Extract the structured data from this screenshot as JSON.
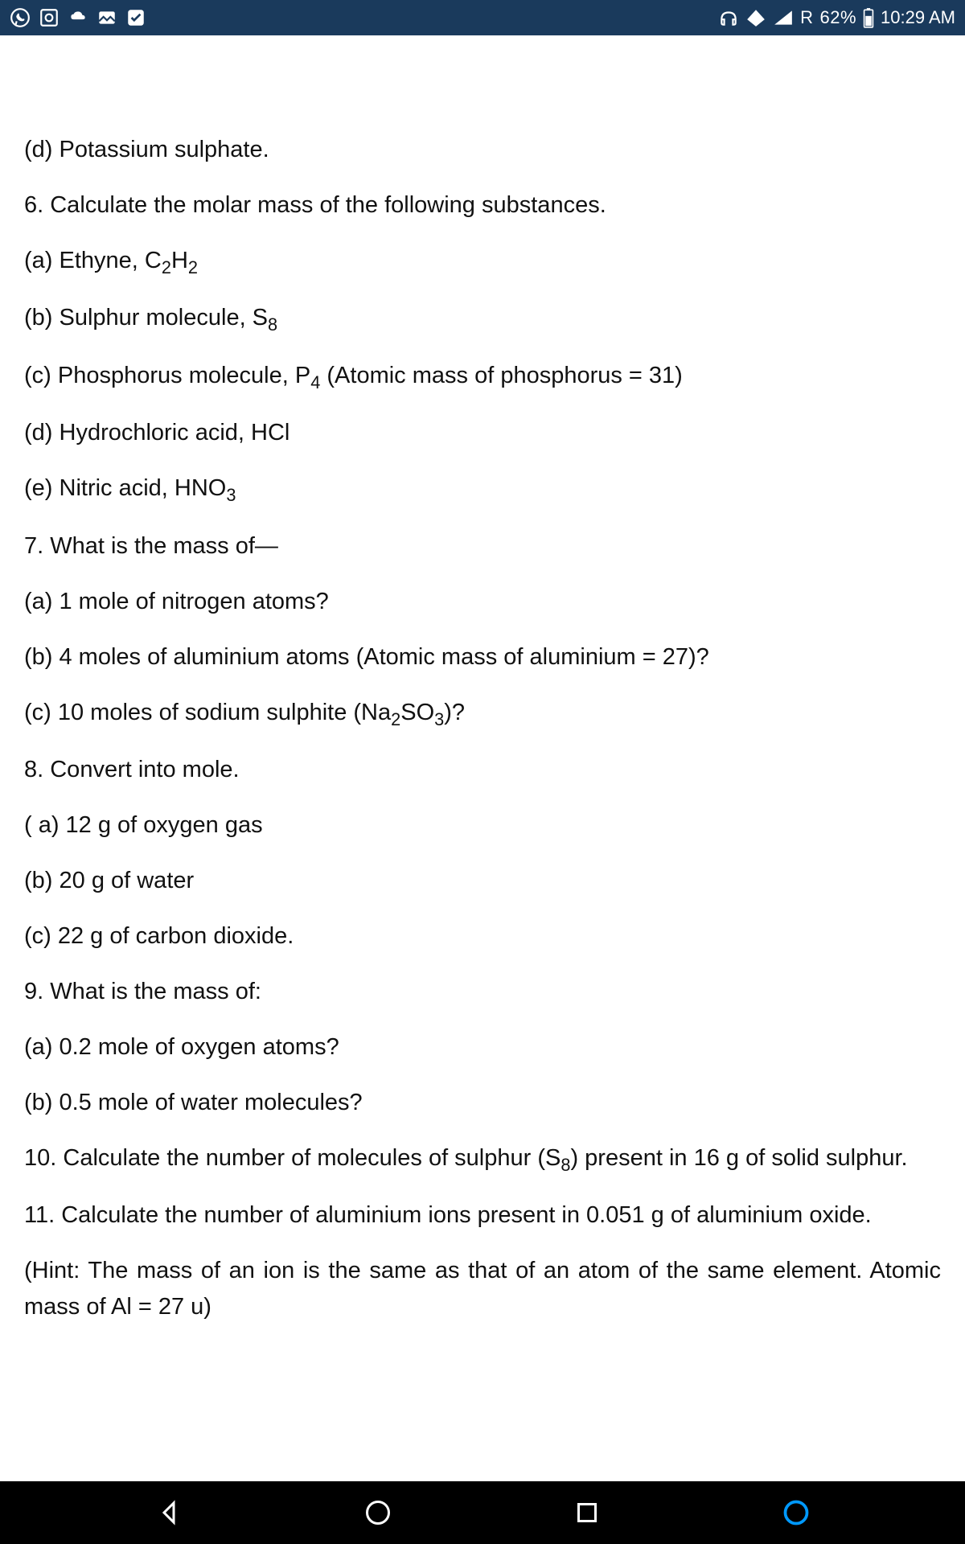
{
  "statusbar": {
    "network_label": "R",
    "battery_pct": "62%",
    "time": "10:29 AM",
    "bg_color": "#1a3a5c",
    "fg_color": "#ffffff"
  },
  "content": {
    "lines": [
      {
        "text": "(d) Potassium sulphate."
      },
      {
        "text": "6. Calculate the molar mass of the following substances."
      },
      {
        "html": "(a) Ethyne, C<sub>2</sub>H<sub>2</sub>"
      },
      {
        "html": "(b) Sulphur molecule, S<sub>8</sub>"
      },
      {
        "html": "(c) Phosphorus molecule, P<sub>4</sub> (Atomic mass of phosphorus = 31)"
      },
      {
        "text": "(d) Hydrochloric acid, HCl"
      },
      {
        "html": "(e) Nitric acid, HNO<sub>3</sub>"
      },
      {
        "text": "7. What is the mass of—"
      },
      {
        "text": "(a) 1 mole of nitrogen atoms?"
      },
      {
        "text": "(b) 4 moles of aluminium atoms (Atomic mass of aluminium = 27)?"
      },
      {
        "html": "(c) 10 moles of sodium sulphite (Na<sub>2</sub>SO<sub>3</sub>)?"
      },
      {
        "text": "8. Convert into mole."
      },
      {
        "text": "( a) 12 g of oxygen gas"
      },
      {
        "text": "(b) 20 g of water"
      },
      {
        "text": "(c) 22 g of carbon dioxide."
      },
      {
        "text": "9. What is the mass of:"
      },
      {
        "text": "(a) 0.2 mole of oxygen atoms?"
      },
      {
        "text": "(b) 0.5 mole of water molecules?"
      },
      {
        "html": "10. Calculate the number of molecules of sulphur (S<sub>8</sub>) present in 16 g of solid sulphur.",
        "justify": true
      },
      {
        "text": "11. Calculate the number of aluminium ions present in 0.051 g of aluminium oxide.",
        "justify": true
      },
      {
        "text": "(Hint: The mass of an ion is the same as that of an atom of the same element. Atomic mass of Al = 27 u)",
        "justify": true
      }
    ],
    "font_size": 29,
    "text_color": "#111111"
  },
  "navbar": {
    "bg_color": "#000000",
    "accent_color": "#0099ff"
  }
}
